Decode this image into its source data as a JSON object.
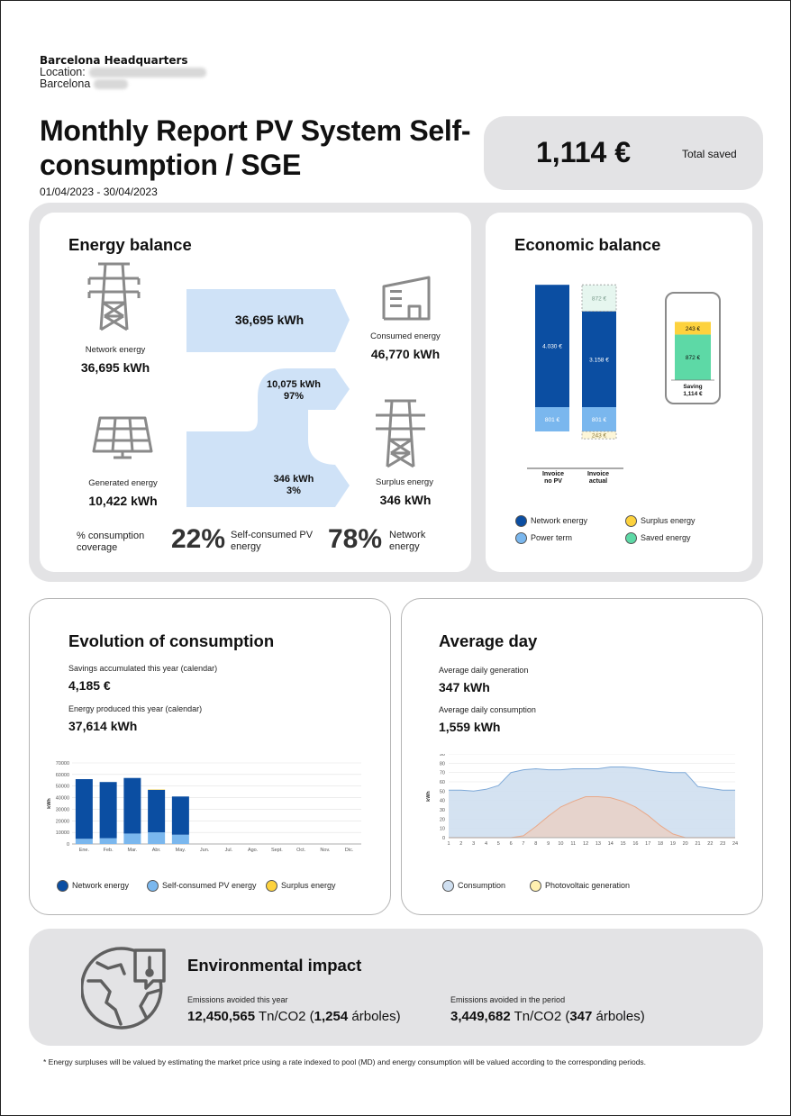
{
  "header": {
    "site_name": "Barcelona Headquarters",
    "location_label": "Location:",
    "city": "Barcelona"
  },
  "report": {
    "title": "Monthly Report PV System Self-consumption / SGE",
    "period": "01/04/2023 - 30/04/2023",
    "total_saved_value": "1,114 €",
    "total_saved_label": "Total saved"
  },
  "energy_balance": {
    "title": "Energy balance",
    "network_label": "Network energy",
    "network_value": "36,695 kWh",
    "flow_network": "36,695 kWh",
    "consumed_label": "Consumed energy",
    "consumed_value": "46,770 kWh",
    "flow_self_value": "10,075 kWh",
    "flow_self_pct": "97%",
    "generated_label": "Generated energy",
    "generated_value": "10,422 kWh",
    "flow_surplus_value": "346 kWh",
    "flow_surplus_pct": "3%",
    "surplus_label": "Surplus energy",
    "surplus_value": "346 kWh",
    "coverage_label": "% consumption coverage",
    "self_pct": "22%",
    "self_label": "Self-consumed PV energy",
    "network_pct": "78%",
    "network_pct_label": "Network energy",
    "colors": {
      "flow": "#cfe2f7",
      "icon": "#8a8a8a"
    }
  },
  "economic_balance": {
    "title": "Economic balance",
    "chart_data": {
      "type": "bar",
      "categories": [
        "Invoice no PV",
        "Invoice actual"
      ],
      "series": [
        {
          "name": "Power term",
          "values": [
            801,
            801
          ]
        },
        {
          "name": "Network energy",
          "values": [
            4030,
            3158
          ]
        },
        {
          "name": "Saved energy",
          "values": [
            0,
            872
          ]
        },
        {
          "name": "Surplus energy",
          "values": [
            0,
            -243
          ]
        }
      ],
      "bar_labels": {
        "no_pv_network": "4.030 €",
        "no_pv_power": "801 €",
        "actual_saved": "872 €",
        "actual_network": "3.158 €",
        "actual_power": "801 €",
        "actual_surplus": "243 €"
      },
      "cat_label_1a": "Invoice",
      "cat_label_1b": "no PV",
      "cat_label_2a": "Invoice",
      "cat_label_2b": "actual",
      "saving": {
        "surplus": "243 €",
        "saved": "872 €",
        "label": "Saving",
        "total": "1,114 €"
      }
    },
    "legend": [
      "Network energy",
      "Surplus energy",
      "Power term",
      "Saved energy"
    ],
    "colors": {
      "network": "#0b4ea2",
      "power": "#7ab7ee",
      "surplus": "#fdd23e",
      "saved": "#5dd9a6"
    }
  },
  "evolution": {
    "title": "Evolution of consumption",
    "savings_label": "Savings accumulated this year (calendar)",
    "savings_value": "4,185 €",
    "produced_label": "Energy produced this year (calendar)",
    "produced_value": "37,614 kWh",
    "legend": [
      "Network energy",
      "Self-consumed PV energy",
      "Surplus energy"
    ],
    "chart_data": {
      "type": "bar",
      "categories": [
        "Ene.",
        "Feb.",
        "Mar.",
        "Abr.",
        "May.",
        "Jun.",
        "Jul.",
        "Ago.",
        "Sept.",
        "Oct.",
        "Nov.",
        "Dic."
      ],
      "ylabel": "kWh",
      "ylim": [
        0,
        70000
      ],
      "yticks": [
        "0",
        "10000",
        "20000",
        "30000",
        "40000",
        "50000",
        "60000",
        "70000"
      ],
      "series": [
        {
          "name": "Network energy",
          "values": [
            51500,
            48500,
            48000,
            36700,
            33000,
            null,
            null,
            null,
            null,
            null,
            null,
            null
          ]
        },
        {
          "name": "Self-consumed PV energy",
          "values": [
            4500,
            5000,
            9000,
            10075,
            8000,
            null,
            null,
            null,
            null,
            null,
            null,
            null
          ]
        },
        {
          "name": "Surplus energy",
          "values": [
            0,
            0,
            0,
            346,
            0,
            null,
            null,
            null,
            null,
            null,
            null,
            null
          ]
        }
      ]
    }
  },
  "average_day": {
    "title": "Average day",
    "gen_label": "Average daily generation",
    "gen_value": "347 kWh",
    "cons_label": "Average daily consumption",
    "cons_value": "1,559 kWh",
    "legend": [
      "Consumption",
      "Photovoltaic generation"
    ],
    "chart_data": {
      "type": "area",
      "x": [
        "1",
        "2",
        "3",
        "4",
        "5",
        "6",
        "7",
        "8",
        "9",
        "10",
        "11",
        "12",
        "13",
        "14",
        "15",
        "16",
        "17",
        "18",
        "19",
        "20",
        "21",
        "22",
        "23",
        "24"
      ],
      "ylabel": "kWh",
      "ylim": [
        0,
        90
      ],
      "yticks": [
        "0",
        "10",
        "20",
        "30",
        "40",
        "50",
        "60",
        "70",
        "80",
        "90"
      ],
      "series": [
        {
          "name": "Consumption",
          "values": [
            51,
            51,
            50,
            52,
            56,
            70,
            73,
            74,
            73,
            73,
            74,
            74,
            74,
            76,
            76,
            75,
            73,
            71,
            70,
            70,
            55,
            53,
            51,
            51
          ]
        },
        {
          "name": "Photovoltaic generation",
          "values": [
            0,
            0,
            0,
            0,
            0,
            0,
            2,
            12,
            23,
            33,
            39,
            44,
            44,
            43,
            39,
            33,
            24,
            13,
            4,
            0,
            0,
            0,
            0,
            0
          ]
        }
      ]
    },
    "colors": {
      "consumption": "#cfdff0",
      "consumption_line": "#7ea9d8",
      "pv": "#e8d2c8",
      "pv_line": "#e8a98a",
      "pv_legend": "#fff0b0"
    }
  },
  "environment": {
    "title": "Environmental impact",
    "year_label": "Emissions avoided this year",
    "year_value": "12,450,565",
    "year_unit": "Tn/CO2 (",
    "year_trees": "1,254",
    "year_trees_unit": "árboles)",
    "period_label": "Emissions avoided in the period",
    "period_value": "3,449,682",
    "period_unit": "Tn/CO2 (",
    "period_trees": "347",
    "period_trees_unit": "árboles)"
  },
  "footnote": "* Energy surpluses will be valued by estimating the market price using a rate indexed to pool (MD) and energy consumption will be valued according to the corresponding periods."
}
